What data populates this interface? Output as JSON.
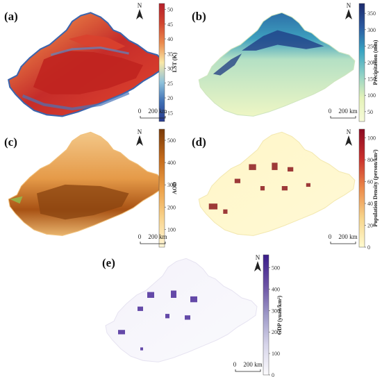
{
  "panels": [
    {
      "id": "a",
      "label": "(a)",
      "colorbar": {
        "title": "LST (K)",
        "ticks": [
          "50",
          "45",
          "40",
          "35",
          "30",
          "25",
          "20",
          "15"
        ],
        "stops": [
          "#b51f2a",
          "#d2452f",
          "#ea8a4d",
          "#f9e8a6",
          "#8fc3dc",
          "#3f6fb4",
          "#283a8e"
        ]
      },
      "scale": {
        "zero": "0",
        "dist": "200 km"
      },
      "north": "N"
    },
    {
      "id": "b",
      "label": "(b)",
      "colorbar": {
        "title": "Precipitation (mm)",
        "ticks": [
          "350",
          "300",
          "250",
          "200",
          "150",
          "100",
          "50"
        ],
        "stops": [
          "#1d2b6d",
          "#2b5aa0",
          "#37a3c2",
          "#8fd0c6",
          "#e5f3b9",
          "#f7fbd9"
        ]
      },
      "scale": {
        "zero": "0",
        "dist": "200 km"
      },
      "north": "N"
    },
    {
      "id": "c",
      "label": "(c)",
      "colorbar": {
        "title": "AOD",
        "ticks": [
          "500",
          "400",
          "300",
          "200",
          "100"
        ],
        "stops": [
          "#7a3a08",
          "#c46a1b",
          "#ec9f47",
          "#f8d38c",
          "#fff6d6"
        ]
      },
      "scale": {
        "zero": "0",
        "dist": "200 km"
      },
      "north": "N"
    },
    {
      "id": "d",
      "label": "(d)",
      "colorbar": {
        "title": "Population Density (person/km²)",
        "ticks": [
          "100",
          "80",
          "60",
          "40",
          "20",
          "0"
        ],
        "stops": [
          "#8c0a22",
          "#c9302c",
          "#ec8a4a",
          "#f7d48a",
          "#fffbd0"
        ]
      },
      "scale": {
        "zero": "0",
        "dist": "200 km"
      },
      "north": "N"
    },
    {
      "id": "e",
      "label": "(e)",
      "colorbar": {
        "title": "GDP (yuan/km²)",
        "ticks": [
          "500",
          "400",
          "300",
          "200",
          "100",
          "0"
        ],
        "stops": [
          "#3b1d8a",
          "#6a51a3",
          "#9e9ac8",
          "#d7d5ea",
          "#fcfbfd"
        ]
      },
      "scale": {
        "zero": "0",
        "dist": "200 km"
      },
      "north": "N"
    }
  ]
}
